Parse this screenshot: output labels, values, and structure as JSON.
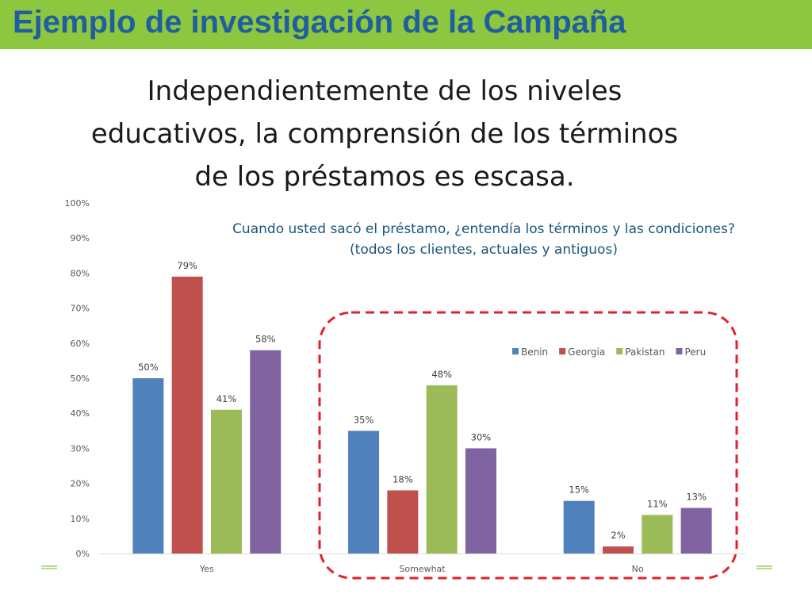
{
  "banner": {
    "title": "Ejemplo de investigación de la Campaña"
  },
  "headline": {
    "lines": [
      "Independientemente de los niveles",
      "educativos, la comprensión de los términos",
      "de los préstamos es escasa."
    ]
  },
  "colors": {
    "banner": "#8dc63f",
    "banner_text": "#1f5fa0",
    "subtitle_text": "#17567a",
    "highlight_box": "#e32028"
  },
  "chart_data": {
    "type": "bar",
    "title": [
      "Cuando usted sacó el préstamo, ¿entendía los términos y las condiciones?",
      "(todos los clientes, actuales y antiguos)"
    ],
    "categories": [
      "Yes",
      "Somewhat",
      "No"
    ],
    "series": [
      {
        "name": "Benin",
        "color": "#4f81bd",
        "values": [
          50,
          35,
          15
        ],
        "labels": [
          "50%",
          "35%",
          "15%"
        ]
      },
      {
        "name": "Georgia",
        "color": "#c0504d",
        "values": [
          79,
          18,
          2
        ],
        "labels": [
          "79%",
          "18%",
          "2%"
        ]
      },
      {
        "name": "Pakistan",
        "color": "#9bbb59",
        "values": [
          41,
          48,
          11
        ],
        "labels": [
          "41%",
          "48%",
          "11%"
        ]
      },
      {
        "name": "Peru",
        "color": "#8064a2",
        "values": [
          58,
          30,
          13
        ],
        "labels": [
          "58%",
          "30%",
          "13%"
        ]
      }
    ],
    "yticks": [
      "0%",
      "10%",
      "20%",
      "30%",
      "40%",
      "50%",
      "60%",
      "70%",
      "80%",
      "90%",
      "100%"
    ],
    "ylim": [
      0,
      100
    ],
    "grid": false,
    "legend_position": "top-right",
    "xlabel": "",
    "ylabel": "",
    "highlight": "dashed red rounded box around Somewhat and No"
  }
}
